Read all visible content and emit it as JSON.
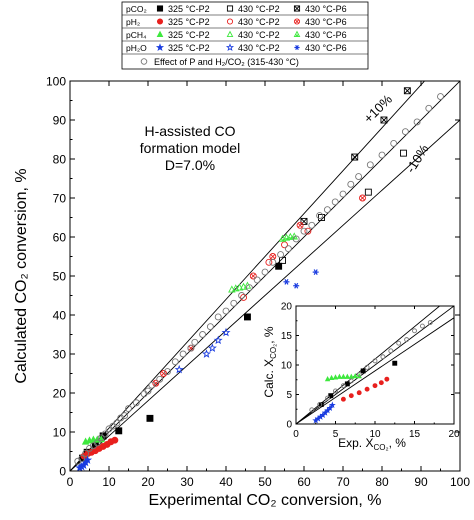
{
  "chart_data": [
    {
      "type": "scatter",
      "title": "",
      "xlabel": "Experimental CO₂ conversion, %",
      "ylabel": "Calculated CO₂ conversion, %",
      "xlim": [
        0,
        100
      ],
      "ylim": [
        0,
        100
      ],
      "x_ticks": [
        0,
        10,
        20,
        30,
        40,
        50,
        60,
        70,
        80,
        90,
        100
      ],
      "y_ticks": [
        0,
        10,
        20,
        30,
        40,
        50,
        60,
        70,
        80,
        90,
        100
      ],
      "grid": false,
      "legend_position": "top",
      "annotations": {
        "model_lines": [
          "H-assisted CO",
          "formation model",
          "D=7.0%"
        ],
        "plus10": "+10%",
        "minus10": "-10%"
      },
      "reference_lines": [
        {
          "label": "",
          "slope": 1.0
        },
        {
          "label": "+10%",
          "slope": 1.1
        },
        {
          "label": "-10%",
          "slope": 0.9
        }
      ],
      "legend": {
        "rows": [
          {
            "label": "pCO₂",
            "entries": [
              {
                "text": "325 °C-P2",
                "marker": "square",
                "color": "#000000",
                "filled": true
              },
              {
                "text": "430 °C-P2",
                "marker": "square",
                "color": "#000000",
                "filled": false
              },
              {
                "text": "430 °C-P6",
                "marker": "square-x",
                "color": "#000000",
                "filled": false
              }
            ]
          },
          {
            "label": "pH₂",
            "entries": [
              {
                "text": "325 °C-P2",
                "marker": "circle",
                "color": "#e8201e",
                "filled": true
              },
              {
                "text": "430 °C-P2",
                "marker": "circle",
                "color": "#e8201e",
                "filled": false
              },
              {
                "text": "430 °C-P6",
                "marker": "circle-x",
                "color": "#e8201e",
                "filled": false
              }
            ]
          },
          {
            "label": "pCH₄",
            "entries": [
              {
                "text": "325 °C-P2",
                "marker": "triangle",
                "color": "#3ee83e",
                "filled": true
              },
              {
                "text": "430 °C-P2",
                "marker": "triangle",
                "color": "#3ee83e",
                "filled": false
              },
              {
                "text": "430 °C-P6",
                "marker": "triangle-x",
                "color": "#3ee83e",
                "filled": false
              }
            ]
          },
          {
            "label": "pH₂O",
            "entries": [
              {
                "text": "325 °C-P2",
                "marker": "star",
                "color": "#1a3ce0",
                "filled": true
              },
              {
                "text": "430 °C-P2",
                "marker": "star",
                "color": "#1a3ce0",
                "filled": false
              },
              {
                "text": "430 °C-P6",
                "marker": "asterisk",
                "color": "#1a3ce0",
                "filled": false
              }
            ]
          }
        ],
        "footer": {
          "text": "Effect of P and H₂/CO₂ (315-430 °C)",
          "marker": "circle",
          "color": "#777777",
          "filled": false
        }
      },
      "series": [
        {
          "name": "pCO₂ 325 °C-P2",
          "marker": "square",
          "color": "#000000",
          "filled": true,
          "x": [
            3.2,
            4.4,
            6.5,
            8.5,
            12.5,
            20.5,
            45.5,
            53.5
          ],
          "y": [
            3.3,
            4.8,
            6.8,
            9.0,
            10.3,
            13.5,
            39.5,
            52.5
          ]
        },
        {
          "name": "pCO₂ 430 °C-P2",
          "marker": "square",
          "color": "#000000",
          "filled": false,
          "x": [
            54.5,
            64.5,
            76.5,
            85.5
          ],
          "y": [
            54.0,
            65.0,
            71.5,
            81.5
          ]
        },
        {
          "name": "pCO₂ 430 °C-P6",
          "marker": "square-x",
          "color": "#000000",
          "filled": false,
          "x": [
            60.0,
            73.0,
            80.5,
            86.5
          ],
          "y": [
            64.0,
            80.5,
            90.0,
            97.5
          ]
        },
        {
          "name": "pH₂ 325 °C-P2",
          "marker": "circle",
          "color": "#e8201e",
          "filled": true,
          "x": [
            3.6,
            4.6,
            5.5,
            6.5,
            7.5,
            8.5,
            9.5,
            10.5,
            11.5
          ],
          "y": [
            3.8,
            4.5,
            4.8,
            5.2,
            5.8,
            6.3,
            6.8,
            7.5,
            7.9
          ]
        },
        {
          "name": "pH₂ 430 °C-P2",
          "marker": "circle",
          "color": "#e8201e",
          "filled": false,
          "x": [
            44.5,
            51.0,
            55.0,
            61.0
          ],
          "y": [
            44.5,
            53.5,
            58.0,
            61.5
          ]
        },
        {
          "name": "pH₂ 430 °C-P6",
          "marker": "circle-x",
          "color": "#e8201e",
          "filled": false,
          "x": [
            22.0,
            24.0,
            31.0,
            47.0,
            52.0,
            59.0,
            75.0
          ],
          "y": [
            22.5,
            25.0,
            31.5,
            50.0,
            55.0,
            63.0,
            70.0
          ]
        },
        {
          "name": "pCH₄ 325 °C-P2",
          "marker": "triangle",
          "color": "#3ee83e",
          "filled": true,
          "x": [
            4.0,
            5.0,
            6.0,
            7.0,
            8.0
          ],
          "y": [
            7.5,
            7.8,
            8.0,
            8.0,
            8.1
          ]
        },
        {
          "name": "pCH₄ 430 °C-P2",
          "marker": "triangle",
          "color": "#3ee83e",
          "filled": false,
          "x": [
            41.5,
            42.5,
            43.5,
            44.5,
            45.5
          ],
          "y": [
            46.5,
            46.8,
            47.0,
            47.2,
            47.5
          ]
        },
        {
          "name": "pCH₄ 430 °C-P6",
          "marker": "triangle-x",
          "color": "#3ee83e",
          "filled": false,
          "x": [
            54.5,
            55.5,
            56.5,
            57.5
          ],
          "y": [
            59.5,
            59.8,
            60.0,
            60.1
          ]
        },
        {
          "name": "pH₂O 325 °C-P2",
          "marker": "star",
          "color": "#1a3ce0",
          "filled": true,
          "x": [
            2.5,
            3.0,
            3.5,
            4.0,
            4.5
          ],
          "y": [
            0.8,
            1.1,
            1.5,
            2.2,
            2.8
          ]
        },
        {
          "name": "pH₂O 430 °C-P2",
          "marker": "star",
          "color": "#1a3ce0",
          "filled": false,
          "x": [
            28.0,
            35.0,
            36.5,
            38.0,
            40.0
          ],
          "y": [
            26.0,
            30.0,
            31.5,
            33.5,
            35.5
          ]
        },
        {
          "name": "pH₂O 430 °C-P6",
          "marker": "asterisk",
          "color": "#1a3ce0",
          "filled": false,
          "x": [
            55.5,
            58.0,
            63.0
          ],
          "y": [
            48.5,
            47.5,
            51.0
          ]
        },
        {
          "name": "Effect of P and H₂/CO₂ (315-430 °C)",
          "marker": "circle",
          "color": "#777777",
          "filled": false,
          "x": [
            2,
            3,
            4,
            5,
            6,
            7,
            8,
            9,
            10,
            11,
            12,
            13,
            14,
            15,
            17,
            19,
            20,
            21,
            23,
            25,
            27,
            29,
            31,
            32,
            34,
            36,
            38,
            40,
            42,
            44,
            46,
            48,
            50,
            52,
            54,
            56,
            58,
            60,
            62,
            64,
            66,
            68,
            70,
            72,
            74,
            77,
            80,
            83,
            86,
            89,
            92,
            95
          ],
          "y": [
            2.5,
            3.2,
            4.5,
            5.8,
            6.5,
            7.2,
            8.5,
            9.5,
            10.8,
            11.5,
            12.3,
            13.6,
            14.2,
            16.0,
            17.5,
            19.8,
            20.5,
            22.0,
            23.5,
            25.5,
            28.0,
            30.0,
            31.5,
            33.0,
            35.0,
            37.0,
            39.5,
            41.0,
            43.0,
            45.0,
            47.0,
            49.0,
            51.0,
            53.5,
            55.5,
            57.0,
            59.5,
            61.5,
            63.0,
            65.5,
            67.0,
            69.0,
            71.0,
            73.5,
            75.5,
            78.5,
            81.0,
            84.0,
            87.0,
            89.5,
            93.0,
            96.0
          ]
        }
      ]
    },
    {
      "type": "scatter",
      "title": "",
      "xlabel": "Exp. X",
      "xlabel_sub": "CO₂",
      "xlabel_suffix": ", %",
      "ylabel": "Calc. X",
      "ylabel_sub": "CO₂",
      "ylabel_suffix": ", %",
      "xlim": [
        0,
        20
      ],
      "ylim": [
        0,
        20
      ],
      "x_ticks": [
        0,
        5,
        10,
        15,
        20
      ],
      "y_ticks": [
        0,
        5,
        10,
        15,
        20
      ],
      "grid": false,
      "legend_position": "none",
      "reference_lines": [
        {
          "slope": 1.0
        },
        {
          "slope": 1.1
        },
        {
          "slope": 0.9
        }
      ],
      "series": [
        {
          "name": "pCO₂ 325 °C-P2",
          "marker": "square",
          "color": "#000000",
          "filled": true,
          "x": [
            3.2,
            4.4,
            6.5,
            8.5,
            12.5
          ],
          "y": [
            3.3,
            4.8,
            6.8,
            9.0,
            10.3
          ]
        },
        {
          "name": "pH₂ 325 °C-P2",
          "marker": "circle",
          "color": "#e8201e",
          "filled": true,
          "x": [
            6.0,
            7.0,
            8.0,
            9.0,
            10.0,
            10.8,
            11.5
          ],
          "y": [
            4.2,
            4.8,
            5.3,
            5.9,
            6.5,
            7.0,
            7.6
          ]
        },
        {
          "name": "pCH₄ 325 °C-P2",
          "marker": "triangle",
          "color": "#3ee83e",
          "filled": true,
          "x": [
            4.0,
            4.5,
            5.0,
            5.5,
            6.0,
            6.5,
            7.0,
            7.5,
            8.0
          ],
          "y": [
            7.6,
            7.8,
            7.9,
            8.0,
            8.0,
            8.0,
            8.0,
            8.1,
            8.1
          ]
        },
        {
          "name": "pH₂O 325 °C-P2",
          "marker": "star",
          "color": "#1a3ce0",
          "filled": true,
          "x": [
            2.5,
            2.8,
            3.1,
            3.4,
            3.7,
            4.0,
            4.3,
            4.6
          ],
          "y": [
            0.6,
            0.9,
            1.2,
            1.5,
            1.9,
            2.3,
            2.7,
            3.2
          ]
        },
        {
          "name": "Effect of P and H₂/CO₂ (315-430 °C)",
          "marker": "circle",
          "color": "#777777",
          "filled": false,
          "x": [
            2,
            3,
            4,
            5,
            6,
            7,
            8,
            9,
            10,
            11,
            12,
            13,
            14,
            15,
            16,
            17
          ],
          "y": [
            2.4,
            3.3,
            4.4,
            5.6,
            6.5,
            7.3,
            8.4,
            9.6,
            10.7,
            11.4,
            12.4,
            13.7,
            14.3,
            15.8,
            16.6,
            17.2
          ]
        }
      ]
    }
  ]
}
